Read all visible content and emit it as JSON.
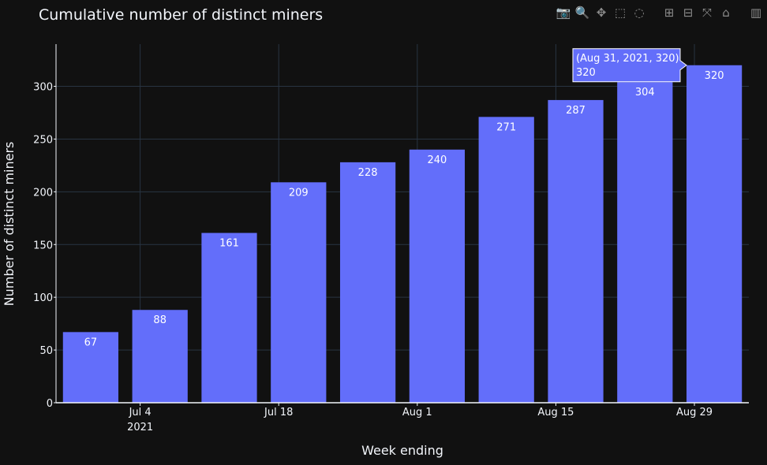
{
  "header": {
    "title": "Cumulative number of distinct miners"
  },
  "modebar": {
    "buttons": [
      {
        "icon": "camera-icon",
        "glyph": "📷"
      },
      {
        "icon": "zoom-icon",
        "glyph": "🔍"
      },
      {
        "icon": "pan-icon",
        "glyph": "✥"
      },
      {
        "icon": "box-select-icon",
        "glyph": "⬚"
      },
      {
        "icon": "lasso-select-icon",
        "glyph": "◌"
      },
      {
        "icon": "zoom-in-icon",
        "glyph": "⊞"
      },
      {
        "icon": "zoom-out-icon",
        "glyph": "⊟"
      },
      {
        "icon": "autoscale-icon",
        "glyph": "⤧"
      },
      {
        "icon": "home-icon",
        "glyph": "⌂"
      },
      {
        "icon": "plotly-logo-icon",
        "glyph": "▥"
      }
    ]
  },
  "colors": {
    "bar": "#636efa",
    "background": "#111111",
    "grid": "#283442",
    "text": "#f2f5fa"
  },
  "chart_data": {
    "type": "bar",
    "title": "Cumulative number of distinct miners",
    "xlabel": "Week ending",
    "ylabel": "Number of distinct miners",
    "x": [
      "2021-06-29",
      "2021-07-06",
      "2021-07-13",
      "2021-07-20",
      "2021-07-27",
      "2021-08-03",
      "2021-08-10",
      "2021-08-17",
      "2021-08-24",
      "2021-08-31"
    ],
    "values": [
      67,
      88,
      161,
      209,
      228,
      240,
      271,
      287,
      304,
      320
    ],
    "ylim": [
      0,
      340
    ],
    "yticks": [
      0,
      50,
      100,
      150,
      200,
      250,
      300
    ],
    "xticks": [
      {
        "x": "2021-07-04",
        "label": "Jul 4",
        "sublabel": "2021"
      },
      {
        "x": "2021-07-18",
        "label": "Jul 18",
        "sublabel": ""
      },
      {
        "x": "2021-08-01",
        "label": "Aug 1",
        "sublabel": ""
      },
      {
        "x": "2021-08-15",
        "label": "Aug 15",
        "sublabel": ""
      },
      {
        "x": "2021-08-29",
        "label": "Aug 29",
        "sublabel": ""
      }
    ],
    "grid": true,
    "hover": {
      "index": 9,
      "line1": "(Aug 31, 2021, 320)",
      "line2": "320"
    }
  }
}
